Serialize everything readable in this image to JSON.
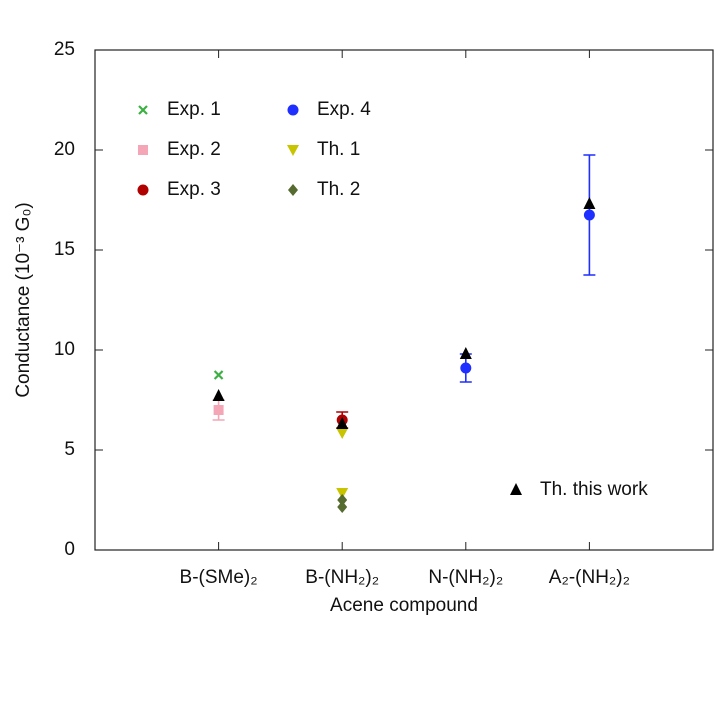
{
  "chart_data": {
    "type": "scatter",
    "x_label": "Acene compound",
    "y_label": "Conductance (10⁻³ G₀)",
    "categories": [
      "B-(SMe)₂",
      "B-(NH₂)₂",
      "N-(NH₂)₂",
      "A₂-(NH₂)₂"
    ],
    "ylim": [
      0,
      25
    ],
    "yticks": [
      0,
      5,
      10,
      15,
      20,
      25
    ],
    "series": [
      {
        "name": "Exp. 1",
        "color": "#3cb043",
        "marker": "x",
        "x": [
          "B-(SMe)₂"
        ],
        "values": [
          8.75
        ]
      },
      {
        "name": "Exp. 2",
        "color": "#f4a6b7",
        "marker": "square",
        "x": [
          "B-(SMe)₂"
        ],
        "values": [
          7.0
        ],
        "errors": [
          0.5
        ]
      },
      {
        "name": "Exp. 3",
        "color": "#b00000",
        "marker": "circle",
        "x": [
          "B-(NH₂)₂"
        ],
        "values": [
          6.5
        ],
        "errors": [
          0.4
        ]
      },
      {
        "name": "Exp. 4",
        "color": "#1f2fff",
        "marker": "circle",
        "x": [
          "N-(NH₂)₂",
          "A₂-(NH₂)₂"
        ],
        "values": [
          9.1,
          16.75
        ],
        "errors": [
          0.7,
          3.0
        ]
      },
      {
        "name": "Th. 1",
        "color": "#c8c400",
        "marker": "triangle-down",
        "x": [
          "B-(NH₂)₂",
          "B-(NH₂)₂"
        ],
        "values": [
          5.85,
          2.85
        ]
      },
      {
        "name": "Th. 2",
        "color": "#556b2f",
        "marker": "diamond",
        "x": [
          "B-(NH₂)₂",
          "B-(NH₂)₂"
        ],
        "values": [
          2.5,
          2.15
        ]
      },
      {
        "name": "Th. this work",
        "color": "#000000",
        "marker": "triangle",
        "x": [
          "B-(SMe)₂",
          "B-(NH₂)₂",
          "N-(NH₂)₂",
          "A₂-(NH₂)₂"
        ],
        "values": [
          7.7,
          6.3,
          9.8,
          17.3
        ]
      }
    ]
  }
}
